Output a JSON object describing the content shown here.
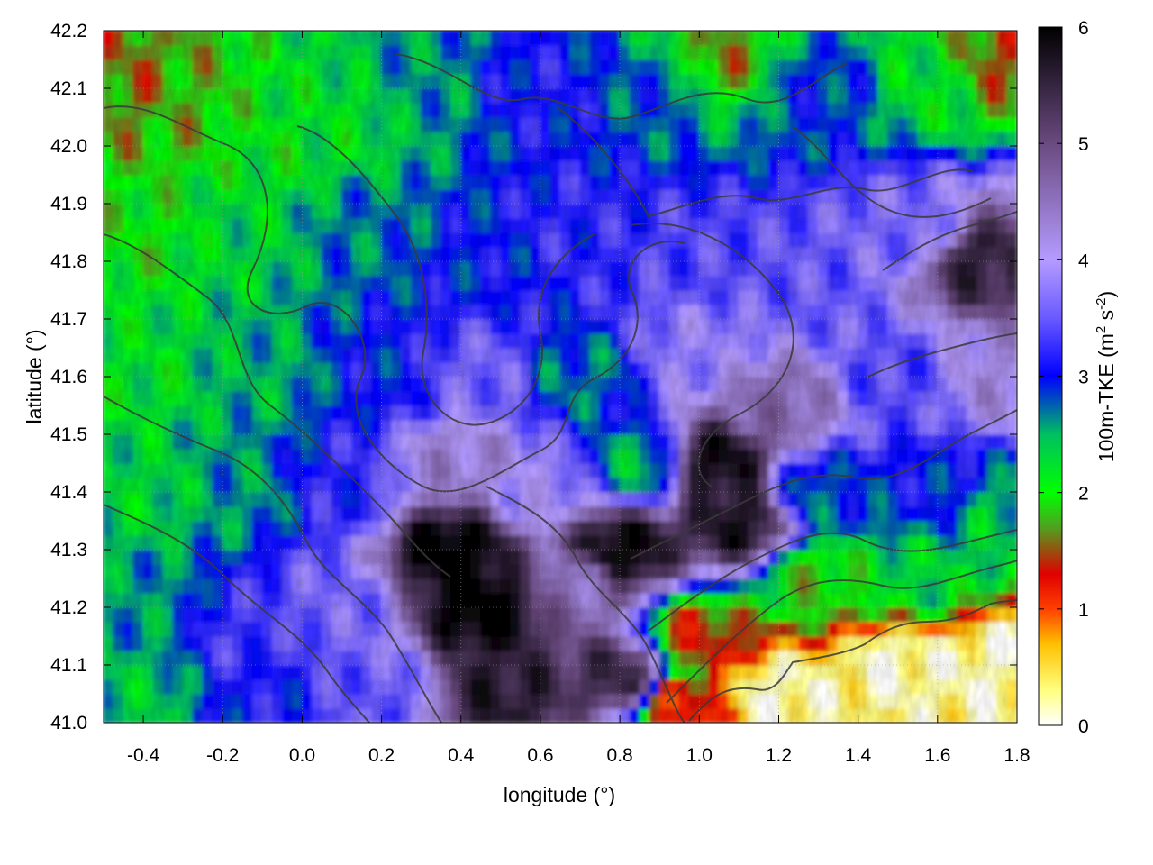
{
  "chart_data": {
    "type": "heatmap",
    "xlabel": "longitude (°)",
    "ylabel": "latitude (°)",
    "colorbar_label_prefix": "100m-TKE (m",
    "colorbar_label_sup1": "2",
    "colorbar_label_mid": " s",
    "colorbar_label_sup2": "-2",
    "colorbar_label_suffix": ")",
    "xlim": [
      -0.5,
      1.8
    ],
    "ylim": [
      41.0,
      42.2
    ],
    "x_ticks": [
      "-0.4",
      "-0.2",
      "0.0",
      "0.2",
      "0.4",
      "0.6",
      "0.8",
      "1.0",
      "1.2",
      "1.4",
      "1.6",
      "1.8"
    ],
    "x_tick_values": [
      -0.4,
      -0.2,
      0.0,
      0.2,
      0.4,
      0.6,
      0.8,
      1.0,
      1.2,
      1.4,
      1.6,
      1.8
    ],
    "y_ticks": [
      "41.0",
      "41.1",
      "41.2",
      "41.3",
      "41.4",
      "41.5",
      "41.6",
      "41.7",
      "41.8",
      "41.9",
      "42.0",
      "42.1",
      "42.2"
    ],
    "y_tick_values": [
      41.0,
      41.1,
      41.2,
      41.3,
      41.4,
      41.5,
      41.6,
      41.7,
      41.8,
      41.9,
      42.0,
      42.1,
      42.2
    ],
    "colorbar_range": [
      0,
      6
    ],
    "colorbar_ticks": [
      "0",
      "1",
      "2",
      "3",
      "4",
      "5",
      "6"
    ],
    "colorbar_tick_values": [
      0,
      1,
      2,
      3,
      4,
      5,
      6
    ],
    "colormap": [
      {
        "value": 0.0,
        "color": "#ffffff"
      },
      {
        "value": 0.3,
        "color": "#ffff80"
      },
      {
        "value": 0.7,
        "color": "#ffc000"
      },
      {
        "value": 1.0,
        "color": "#ff4000"
      },
      {
        "value": 1.3,
        "color": "#e00000"
      },
      {
        "value": 1.7,
        "color": "#50a020"
      },
      {
        "value": 2.0,
        "color": "#00ff00"
      },
      {
        "value": 2.5,
        "color": "#00c060"
      },
      {
        "value": 3.0,
        "color": "#0000ff"
      },
      {
        "value": 3.5,
        "color": "#6a5aff"
      },
      {
        "value": 4.0,
        "color": "#b49bff"
      },
      {
        "value": 5.0,
        "color": "#6a4a80"
      },
      {
        "value": 6.0,
        "color": "#000000"
      }
    ],
    "grid": true,
    "contours": "terrain elevation isolines (dark grey)",
    "field_regions": [
      {
        "lon": -0.45,
        "lat": 42.1,
        "tke": 1.6
      },
      {
        "lon": -0.3,
        "lat": 42.05,
        "tke": 1.8
      },
      {
        "lon": -0.1,
        "lat": 42.0,
        "tke": 2.1
      },
      {
        "lon": 0.1,
        "lat": 42.05,
        "tke": 2.2
      },
      {
        "lon": 0.3,
        "lat": 42.1,
        "tke": 2.6
      },
      {
        "lon": 0.6,
        "lat": 42.1,
        "tke": 3.1
      },
      {
        "lon": 0.9,
        "lat": 42.1,
        "tke": 2.8
      },
      {
        "lon": 1.05,
        "lat": 42.15,
        "tke": 1.7
      },
      {
        "lon": 1.3,
        "lat": 42.1,
        "tke": 2.9
      },
      {
        "lon": 1.6,
        "lat": 42.12,
        "tke": 2.2
      },
      {
        "lon": 1.75,
        "lat": 42.15,
        "tke": 1.5
      },
      {
        "lon": -0.4,
        "lat": 41.85,
        "tke": 2.0
      },
      {
        "lon": -0.15,
        "lat": 41.85,
        "tke": 2.3
      },
      {
        "lon": 0.15,
        "lat": 41.85,
        "tke": 2.7
      },
      {
        "lon": 0.45,
        "lat": 41.8,
        "tke": 3.0
      },
      {
        "lon": 0.7,
        "lat": 41.85,
        "tke": 3.2
      },
      {
        "lon": 1.0,
        "lat": 41.8,
        "tke": 3.4
      },
      {
        "lon": 1.3,
        "lat": 41.75,
        "tke": 3.5
      },
      {
        "lon": 1.55,
        "lat": 41.85,
        "tke": 3.6
      },
      {
        "lon": 1.7,
        "lat": 41.8,
        "tke": 5.5
      },
      {
        "lon": -0.4,
        "lat": 41.6,
        "tke": 2.2
      },
      {
        "lon": -0.1,
        "lat": 41.6,
        "tke": 2.5
      },
      {
        "lon": 0.2,
        "lat": 41.6,
        "tke": 3.0
      },
      {
        "lon": 0.45,
        "lat": 41.6,
        "tke": 3.6
      },
      {
        "lon": 0.7,
        "lat": 41.6,
        "tke": 2.7
      },
      {
        "lon": 1.0,
        "lat": 41.65,
        "tke": 3.8
      },
      {
        "lon": 1.2,
        "lat": 41.55,
        "tke": 4.6
      },
      {
        "lon": 1.5,
        "lat": 41.6,
        "tke": 3.4
      },
      {
        "lon": 1.75,
        "lat": 41.6,
        "tke": 4.2
      },
      {
        "lon": -0.4,
        "lat": 41.4,
        "tke": 2.3
      },
      {
        "lon": -0.15,
        "lat": 41.4,
        "tke": 2.6
      },
      {
        "lon": 0.1,
        "lat": 41.4,
        "tke": 3.2
      },
      {
        "lon": 0.4,
        "lat": 41.45,
        "tke": 4.3
      },
      {
        "lon": 0.6,
        "lat": 41.4,
        "tke": 3.9
      },
      {
        "lon": 0.85,
        "lat": 41.45,
        "tke": 2.5
      },
      {
        "lon": 1.05,
        "lat": 41.45,
        "tke": 5.8
      },
      {
        "lon": 1.3,
        "lat": 41.4,
        "tke": 2.8
      },
      {
        "lon": 1.6,
        "lat": 41.4,
        "tke": 3.0
      },
      {
        "lon": 1.75,
        "lat": 41.35,
        "tke": 2.4
      },
      {
        "lon": -0.4,
        "lat": 41.2,
        "tke": 2.6
      },
      {
        "lon": -0.15,
        "lat": 41.15,
        "tke": 3.3
      },
      {
        "lon": 0.1,
        "lat": 41.2,
        "tke": 3.6
      },
      {
        "lon": 0.38,
        "lat": 41.3,
        "tke": 6.0
      },
      {
        "lon": 0.45,
        "lat": 41.2,
        "tke": 6.0
      },
      {
        "lon": 0.7,
        "lat": 41.25,
        "tke": 4.5
      },
      {
        "lon": 0.8,
        "lat": 41.3,
        "tke": 5.9
      },
      {
        "lon": 1.1,
        "lat": 41.35,
        "tke": 5.7
      },
      {
        "lon": 1.0,
        "lat": 41.15,
        "tke": 1.4
      },
      {
        "lon": 1.3,
        "lat": 41.25,
        "tke": 1.9
      },
      {
        "lon": 1.55,
        "lat": 41.25,
        "tke": 2.3
      },
      {
        "lon": -0.4,
        "lat": 41.05,
        "tke": 2.4
      },
      {
        "lon": -0.1,
        "lat": 41.05,
        "tke": 3.1
      },
      {
        "lon": 0.2,
        "lat": 41.05,
        "tke": 3.5
      },
      {
        "lon": 0.5,
        "lat": 41.05,
        "tke": 5.6
      },
      {
        "lon": 0.8,
        "lat": 41.08,
        "tke": 5.4
      },
      {
        "lon": 0.95,
        "lat": 41.03,
        "tke": 1.2
      },
      {
        "lon": 1.2,
        "lat": 41.05,
        "tke": 0.15
      },
      {
        "lon": 1.5,
        "lat": 41.1,
        "tke": 0.15
      },
      {
        "lon": 1.75,
        "lat": 41.1,
        "tke": 0.15
      }
    ]
  }
}
